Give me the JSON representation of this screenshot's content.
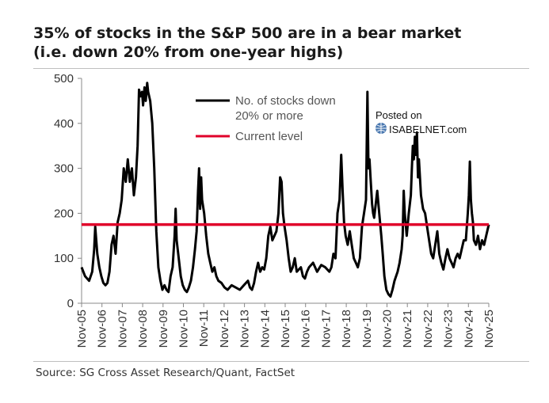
{
  "chart_data": {
    "type": "line",
    "title_line1": "35% of stocks in the S&P 500 are in a bear market",
    "title_line2": "(i.e. down 20% from one-year highs)",
    "xlabel": "",
    "ylabel": "",
    "ylim": [
      0,
      500
    ],
    "xlim": [
      2005.83,
      2025.83
    ],
    "yticks": [
      "0",
      "100",
      "200",
      "300",
      "400",
      "500"
    ],
    "xticks": [
      "Nov-05",
      "Nov-06",
      "Nov-07",
      "Nov-08",
      "Nov-09",
      "Nov-10",
      "Nov-11",
      "Nov-12",
      "Nov-13",
      "Nov-14",
      "Nov-15",
      "Nov-16",
      "Nov-17",
      "Nov-18",
      "Nov-19",
      "Nov-20",
      "Nov-21",
      "Nov-22",
      "Nov-23",
      "Nov-24",
      "Nov-25"
    ],
    "legend_position": "top-center",
    "series": [
      {
        "name": "No. of stocks down 20% or more",
        "legend_line1": "No. of stocks down",
        "legend_line2": "20% or more",
        "color": "#000000",
        "points": [
          [
            2005.83,
            80
          ],
          [
            2006.0,
            60
          ],
          [
            2006.2,
            50
          ],
          [
            2006.35,
            70
          ],
          [
            2006.45,
            120
          ],
          [
            2006.5,
            170
          ],
          [
            2006.6,
            110
          ],
          [
            2006.7,
            80
          ],
          [
            2006.8,
            60
          ],
          [
            2006.9,
            45
          ],
          [
            2007.0,
            40
          ],
          [
            2007.1,
            45
          ],
          [
            2007.2,
            70
          ],
          [
            2007.3,
            130
          ],
          [
            2007.4,
            150
          ],
          [
            2007.5,
            110
          ],
          [
            2007.6,
            180
          ],
          [
            2007.7,
            200
          ],
          [
            2007.8,
            230
          ],
          [
            2007.9,
            300
          ],
          [
            2008.0,
            270
          ],
          [
            2008.1,
            320
          ],
          [
            2008.2,
            270
          ],
          [
            2008.3,
            300
          ],
          [
            2008.4,
            240
          ],
          [
            2008.5,
            280
          ],
          [
            2008.58,
            350
          ],
          [
            2008.65,
            475
          ],
          [
            2008.72,
            460
          ],
          [
            2008.8,
            470
          ],
          [
            2008.85,
            440
          ],
          [
            2008.92,
            480
          ],
          [
            2008.98,
            450
          ],
          [
            2009.05,
            490
          ],
          [
            2009.1,
            470
          ],
          [
            2009.2,
            450
          ],
          [
            2009.3,
            400
          ],
          [
            2009.4,
            300
          ],
          [
            2009.5,
            160
          ],
          [
            2009.6,
            80
          ],
          [
            2009.7,
            50
          ],
          [
            2009.8,
            30
          ],
          [
            2009.9,
            40
          ],
          [
            2010.0,
            30
          ],
          [
            2010.1,
            25
          ],
          [
            2010.2,
            60
          ],
          [
            2010.3,
            80
          ],
          [
            2010.4,
            150
          ],
          [
            2010.45,
            210
          ],
          [
            2010.5,
            140
          ],
          [
            2010.6,
            100
          ],
          [
            2010.7,
            60
          ],
          [
            2010.8,
            40
          ],
          [
            2010.9,
            30
          ],
          [
            2011.0,
            25
          ],
          [
            2011.1,
            35
          ],
          [
            2011.2,
            50
          ],
          [
            2011.3,
            80
          ],
          [
            2011.4,
            120
          ],
          [
            2011.48,
            160
          ],
          [
            2011.55,
            250
          ],
          [
            2011.6,
            300
          ],
          [
            2011.65,
            210
          ],
          [
            2011.7,
            280
          ],
          [
            2011.75,
            230
          ],
          [
            2011.85,
            200
          ],
          [
            2011.95,
            150
          ],
          [
            2012.05,
            110
          ],
          [
            2012.15,
            90
          ],
          [
            2012.25,
            70
          ],
          [
            2012.35,
            80
          ],
          [
            2012.45,
            60
          ],
          [
            2012.55,
            50
          ],
          [
            2012.7,
            45
          ],
          [
            2012.85,
            35
          ],
          [
            2013.0,
            30
          ],
          [
            2013.2,
            40
          ],
          [
            2013.4,
            35
          ],
          [
            2013.6,
            30
          ],
          [
            2013.8,
            40
          ],
          [
            2014.0,
            50
          ],
          [
            2014.1,
            35
          ],
          [
            2014.2,
            30
          ],
          [
            2014.3,
            45
          ],
          [
            2014.4,
            70
          ],
          [
            2014.5,
            90
          ],
          [
            2014.6,
            70
          ],
          [
            2014.7,
            80
          ],
          [
            2014.8,
            75
          ],
          [
            2014.9,
            100
          ],
          [
            2015.0,
            150
          ],
          [
            2015.1,
            170
          ],
          [
            2015.2,
            140
          ],
          [
            2015.3,
            150
          ],
          [
            2015.4,
            160
          ],
          [
            2015.5,
            200
          ],
          [
            2015.58,
            280
          ],
          [
            2015.65,
            270
          ],
          [
            2015.72,
            200
          ],
          [
            2015.8,
            170
          ],
          [
            2015.9,
            140
          ],
          [
            2016.0,
            100
          ],
          [
            2016.1,
            70
          ],
          [
            2016.2,
            80
          ],
          [
            2016.3,
            100
          ],
          [
            2016.4,
            70
          ],
          [
            2016.5,
            75
          ],
          [
            2016.6,
            80
          ],
          [
            2016.7,
            60
          ],
          [
            2016.8,
            55
          ],
          [
            2016.9,
            70
          ],
          [
            2017.0,
            80
          ],
          [
            2017.2,
            90
          ],
          [
            2017.4,
            70
          ],
          [
            2017.6,
            85
          ],
          [
            2017.8,
            80
          ],
          [
            2018.0,
            70
          ],
          [
            2018.1,
            80
          ],
          [
            2018.2,
            110
          ],
          [
            2018.3,
            100
          ],
          [
            2018.4,
            200
          ],
          [
            2018.5,
            230
          ],
          [
            2018.58,
            330
          ],
          [
            2018.65,
            250
          ],
          [
            2018.72,
            180
          ],
          [
            2018.8,
            150
          ],
          [
            2018.9,
            130
          ],
          [
            2019.0,
            160
          ],
          [
            2019.1,
            130
          ],
          [
            2019.2,
            100
          ],
          [
            2019.3,
            90
          ],
          [
            2019.4,
            80
          ],
          [
            2019.5,
            100
          ],
          [
            2019.6,
            170
          ],
          [
            2019.7,
            200
          ],
          [
            2019.8,
            230
          ],
          [
            2019.87,
            470
          ],
          [
            2019.92,
            300
          ],
          [
            2019.97,
            320
          ],
          [
            2020.02,
            280
          ],
          [
            2020.1,
            220
          ],
          [
            2020.15,
            200
          ],
          [
            2020.2,
            190
          ],
          [
            2020.25,
            210
          ],
          [
            2020.35,
            250
          ],
          [
            2020.45,
            200
          ],
          [
            2020.55,
            150
          ],
          [
            2020.62,
            110
          ],
          [
            2020.7,
            60
          ],
          [
            2020.8,
            30
          ],
          [
            2020.9,
            20
          ],
          [
            2021.0,
            15
          ],
          [
            2021.1,
            30
          ],
          [
            2021.2,
            50
          ],
          [
            2021.35,
            70
          ],
          [
            2021.45,
            90
          ],
          [
            2021.55,
            120
          ],
          [
            2021.6,
            150
          ],
          [
            2021.65,
            250
          ],
          [
            2021.7,
            200
          ],
          [
            2021.8,
            150
          ],
          [
            2021.9,
            200
          ],
          [
            2022.0,
            240
          ],
          [
            2022.05,
            300
          ],
          [
            2022.1,
            350
          ],
          [
            2022.15,
            320
          ],
          [
            2022.2,
            370
          ],
          [
            2022.25,
            330
          ],
          [
            2022.3,
            380
          ],
          [
            2022.35,
            280
          ],
          [
            2022.4,
            320
          ],
          [
            2022.5,
            240
          ],
          [
            2022.6,
            210
          ],
          [
            2022.7,
            200
          ],
          [
            2022.8,
            170
          ],
          [
            2022.9,
            140
          ],
          [
            2023.0,
            110
          ],
          [
            2023.1,
            100
          ],
          [
            2023.2,
            130
          ],
          [
            2023.3,
            160
          ],
          [
            2023.4,
            110
          ],
          [
            2023.5,
            90
          ],
          [
            2023.6,
            75
          ],
          [
            2023.7,
            100
          ],
          [
            2023.8,
            120
          ],
          [
            2023.9,
            100
          ],
          [
            2024.0,
            90
          ],
          [
            2024.1,
            80
          ],
          [
            2024.2,
            100
          ],
          [
            2024.3,
            110
          ],
          [
            2024.4,
            100
          ],
          [
            2024.5,
            120
          ],
          [
            2024.6,
            140
          ],
          [
            2024.7,
            140
          ],
          [
            2024.8,
            200
          ],
          [
            2024.85,
            240
          ],
          [
            2024.9,
            315
          ],
          [
            2024.95,
            230
          ],
          [
            2025.0,
            200
          ],
          [
            2025.05,
            180
          ],
          [
            2025.1,
            140
          ],
          [
            2025.2,
            130
          ],
          [
            2025.3,
            150
          ],
          [
            2025.4,
            120
          ],
          [
            2025.5,
            140
          ],
          [
            2025.6,
            130
          ],
          [
            2025.7,
            150
          ],
          [
            2025.83,
            175
          ]
        ]
      },
      {
        "name": "Current level",
        "legend_line1": "Current level",
        "color": "#e0002a",
        "value": 175
      }
    ]
  },
  "source": "Source: SG Cross Asset Research/Quant, FactSet",
  "watermark": {
    "line1": "Posted on",
    "line2": "ISABELNET.com"
  }
}
